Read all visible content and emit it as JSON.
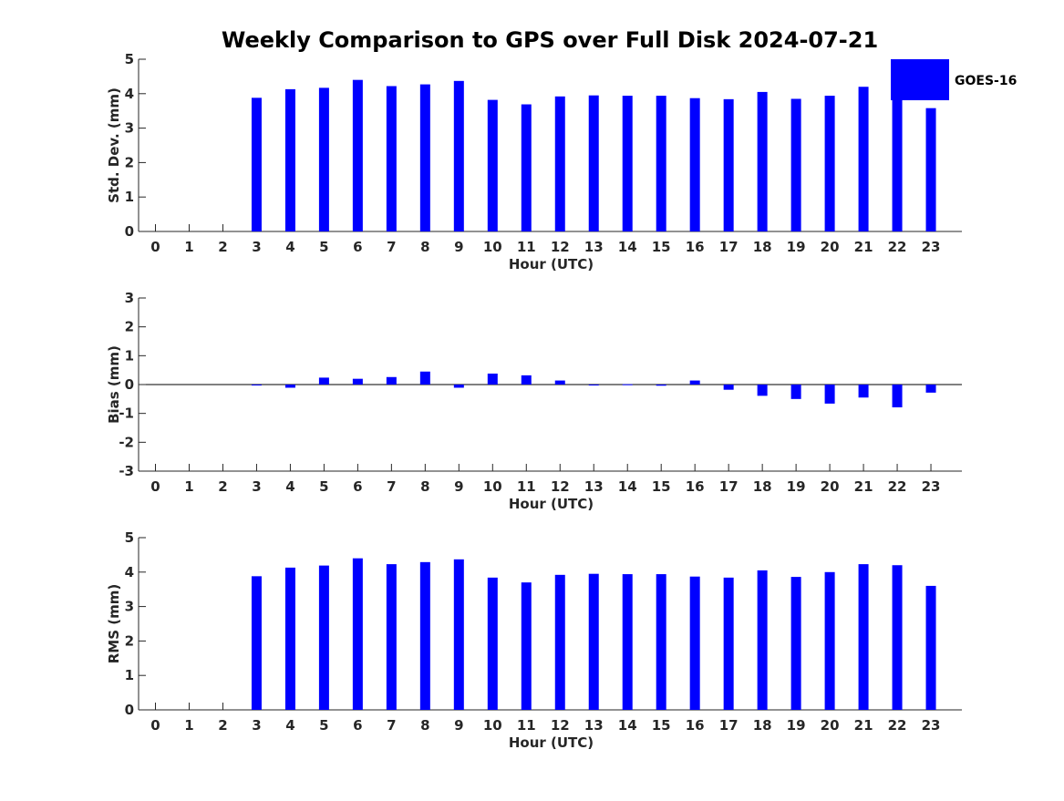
{
  "figure_title": "Weekly Comparison to GPS over Full Disk 2024-07-21",
  "colors": {
    "bar": "#0000ff",
    "axis": "#262626",
    "background": "#ffffff"
  },
  "chart_data": [
    {
      "id": "stddev",
      "type": "bar",
      "xlabel": "Hour (UTC)",
      "ylabel": "Std. Dev. (mm)",
      "ylim": [
        0,
        5
      ],
      "yticks": [
        "0",
        "1",
        "2",
        "3",
        "4",
        "5"
      ],
      "categories": [
        "0",
        "1",
        "2",
        "3",
        "4",
        "5",
        "6",
        "7",
        "8",
        "9",
        "10",
        "11",
        "12",
        "13",
        "14",
        "15",
        "16",
        "17",
        "18",
        "19",
        "20",
        "21",
        "22",
        "23"
      ],
      "series": [
        {
          "name": "GOES-16",
          "values": [
            null,
            null,
            null,
            3.88,
            4.13,
            4.17,
            4.4,
            4.22,
            4.27,
            4.37,
            3.82,
            3.69,
            3.92,
            3.95,
            3.94,
            3.94,
            3.87,
            3.84,
            4.05,
            3.85,
            3.94,
            4.2,
            3.85,
            3.58
          ]
        }
      ],
      "legend": {
        "position": "top-right",
        "entries": [
          "GOES-16"
        ]
      }
    },
    {
      "id": "bias",
      "type": "bar",
      "xlabel": "Hour (UTC)",
      "ylabel": "Bias (mm)",
      "ylim": [
        -3,
        3
      ],
      "yticks": [
        "-3",
        "-2",
        "-1",
        "0",
        "1",
        "2",
        "3"
      ],
      "zero_line": true,
      "categories": [
        "0",
        "1",
        "2",
        "3",
        "4",
        "5",
        "6",
        "7",
        "8",
        "9",
        "10",
        "11",
        "12",
        "13",
        "14",
        "15",
        "16",
        "17",
        "18",
        "19",
        "20",
        "21",
        "22",
        "23"
      ],
      "series": [
        {
          "name": "GOES-16",
          "values": [
            null,
            null,
            null,
            -0.02,
            -0.11,
            0.24,
            0.2,
            0.26,
            0.45,
            -0.11,
            0.38,
            0.32,
            0.14,
            0.0,
            0.01,
            -0.04,
            0.14,
            -0.18,
            -0.39,
            -0.5,
            -0.66,
            -0.45,
            -0.79,
            -0.28
          ]
        }
      ]
    },
    {
      "id": "rms",
      "type": "bar",
      "xlabel": "Hour (UTC)",
      "ylabel": "RMS (mm)",
      "ylim": [
        0,
        5
      ],
      "yticks": [
        "0",
        "1",
        "2",
        "3",
        "4",
        "5"
      ],
      "categories": [
        "0",
        "1",
        "2",
        "3",
        "4",
        "5",
        "6",
        "7",
        "8",
        "9",
        "10",
        "11",
        "12",
        "13",
        "14",
        "15",
        "16",
        "17",
        "18",
        "19",
        "20",
        "21",
        "22",
        "23"
      ],
      "series": [
        {
          "name": "GOES-16",
          "values": [
            null,
            null,
            null,
            3.88,
            4.13,
            4.19,
            4.4,
            4.23,
            4.29,
            4.37,
            3.84,
            3.7,
            3.92,
            3.95,
            3.94,
            3.94,
            3.87,
            3.84,
            4.05,
            3.86,
            4.0,
            4.23,
            4.2,
            3.6
          ]
        }
      ]
    }
  ]
}
